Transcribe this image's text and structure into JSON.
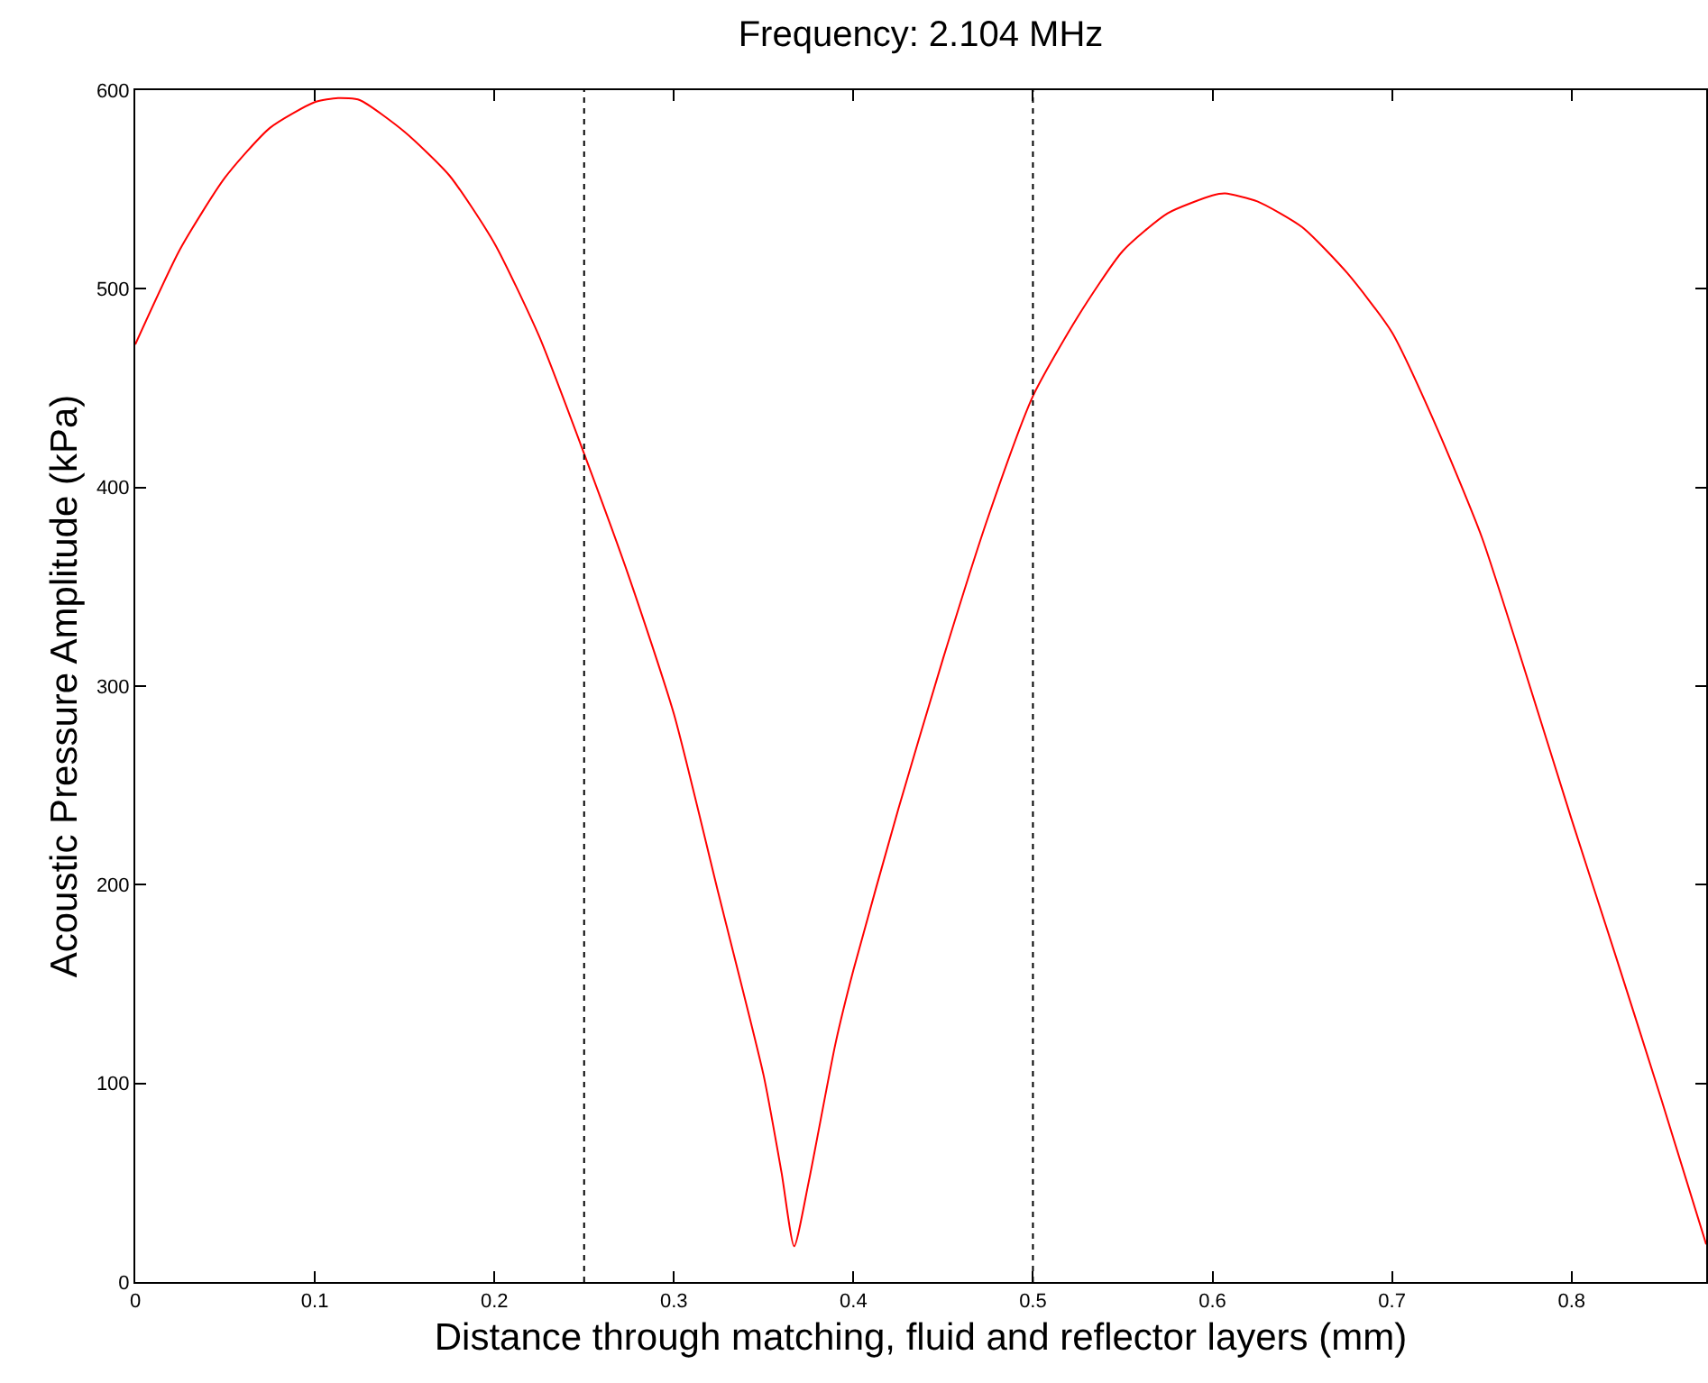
{
  "chart_data": {
    "type": "line",
    "title": "Frequency: 2.104 MHz",
    "xlabel": "Distance through matching, fluid and reflector layers (mm)",
    "ylabel": "Acoustic Pressure Amplitude (kPa)",
    "x": [
      0,
      0.025,
      0.05,
      0.075,
      0.1,
      0.113,
      0.125,
      0.15,
      0.175,
      0.2,
      0.225,
      0.25,
      0.275,
      0.3,
      0.325,
      0.35,
      0.36,
      0.367,
      0.375,
      0.39,
      0.4,
      0.425,
      0.45,
      0.475,
      0.5,
      0.525,
      0.55,
      0.575,
      0.6,
      0.607,
      0.625,
      0.65,
      0.675,
      0.7,
      0.725,
      0.75,
      0.775,
      0.8,
      0.825,
      0.85,
      0.875
    ],
    "series": [
      {
        "color": "#ff0000",
        "values": [
          472,
          520,
          556,
          581,
          594,
          596,
          595,
          579,
          557,
          523,
          476,
          417,
          355,
          286,
          195,
          104,
          55,
          18,
          50,
          120,
          157,
          238,
          314,
          385,
          446,
          486,
          519,
          538,
          547,
          548,
          544,
          531,
          508,
          478,
          430,
          375,
          305,
          233,
          163,
          92,
          19
        ]
      }
    ],
    "xlim": [
      0,
      0.875
    ],
    "ylim": [
      0,
      600
    ],
    "xticks": [
      0,
      0.1,
      0.2,
      0.3,
      0.4,
      0.5,
      0.6,
      0.7,
      0.8
    ],
    "yticks": [
      0,
      100,
      200,
      300,
      400,
      500,
      600
    ],
    "ref_lines": [
      {
        "axis": "x",
        "value": 0.25,
        "color": "#000000",
        "line_style": "dotted"
      },
      {
        "axis": "x",
        "value": 0.5,
        "color": "#000000",
        "line_style": "dotted"
      }
    ],
    "marker": "none",
    "line_style": "solid"
  }
}
